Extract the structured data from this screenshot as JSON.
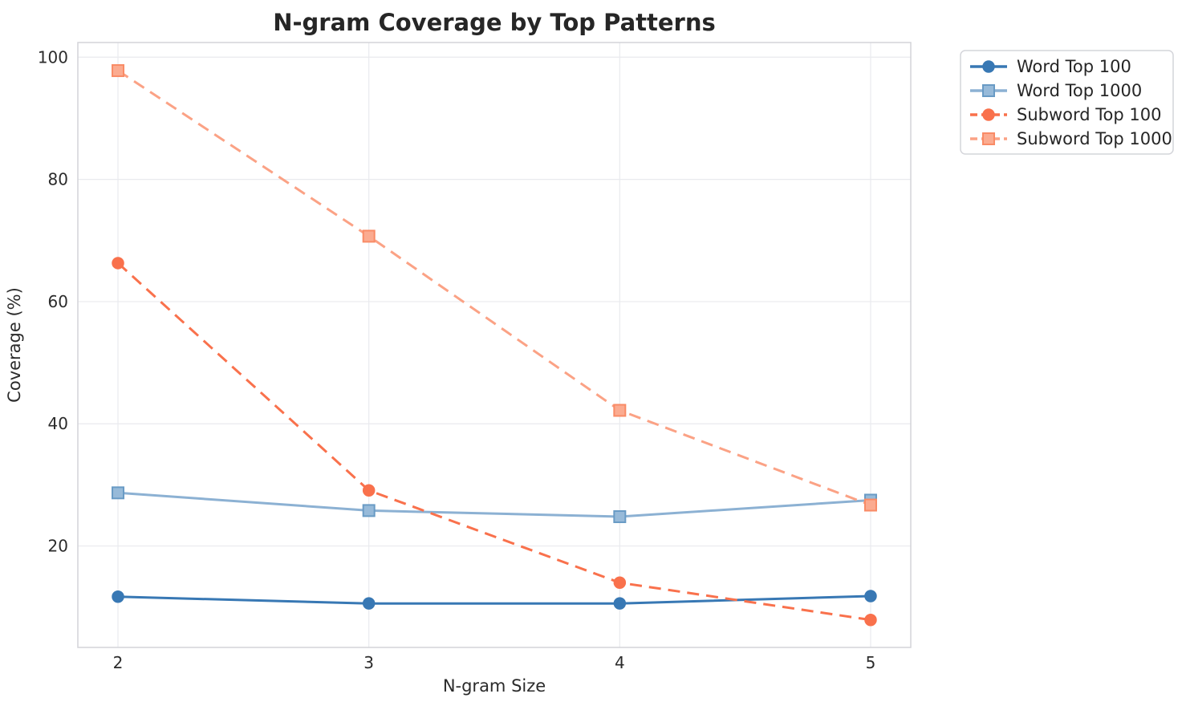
{
  "title": "N-gram Coverage by Top Patterns",
  "chart_data": {
    "type": "line",
    "title": "N-gram Coverage by Top Patterns",
    "xlabel": "N-gram Size",
    "ylabel": "Coverage (%)",
    "x": [
      2,
      3,
      4,
      5
    ],
    "xticks": [
      "2",
      "3",
      "4",
      "5"
    ],
    "yticks": [
      "20",
      "40",
      "60",
      "80",
      "100"
    ],
    "ytick_values": [
      20,
      40,
      60,
      80,
      100
    ],
    "xlim": [
      1.84,
      5.16
    ],
    "ylim": [
      3.4,
      102.4
    ],
    "grid": true,
    "legend_position": "outside-top-right",
    "legend_entries": [
      "Word Top 100",
      "Word Top 1000",
      "Subword Top 100",
      "Subword Top 1000"
    ],
    "series": [
      {
        "name": "Word Top 100",
        "values": [
          11.7,
          10.6,
          10.6,
          11.8
        ],
        "color": "#3878b4",
        "line_style": "solid",
        "marker": "circle",
        "marker_fill": "#3878b4",
        "marker_edge": "#3878b4"
      },
      {
        "name": "Word Top 1000",
        "values": [
          28.7,
          25.8,
          24.8,
          27.5
        ],
        "color": "#8cb1d3",
        "line_style": "solid",
        "marker": "square",
        "marker_fill": "#97bad9",
        "marker_edge": "#699bc5"
      },
      {
        "name": "Subword Top 100",
        "values": [
          66.3,
          29.1,
          14.0,
          7.9
        ],
        "color": "#f9714c",
        "line_style": "dashed",
        "marker": "circle",
        "marker_fill": "#f9714c",
        "marker_edge": "#f9714c"
      },
      {
        "name": "Subword Top 1000",
        "values": [
          97.8,
          70.7,
          42.2,
          26.7
        ],
        "color": "#fba285",
        "line_style": "dashed",
        "marker": "square",
        "marker_fill": "#fbab90",
        "marker_edge": "#f98b66"
      }
    ],
    "colors": {
      "text": "#2b2b2b",
      "title_text": "#262626",
      "grid": "#e9eaee",
      "spine": "#d3d4d9",
      "legend_border": "#d4d5da",
      "background": "#ffffff"
    }
  }
}
